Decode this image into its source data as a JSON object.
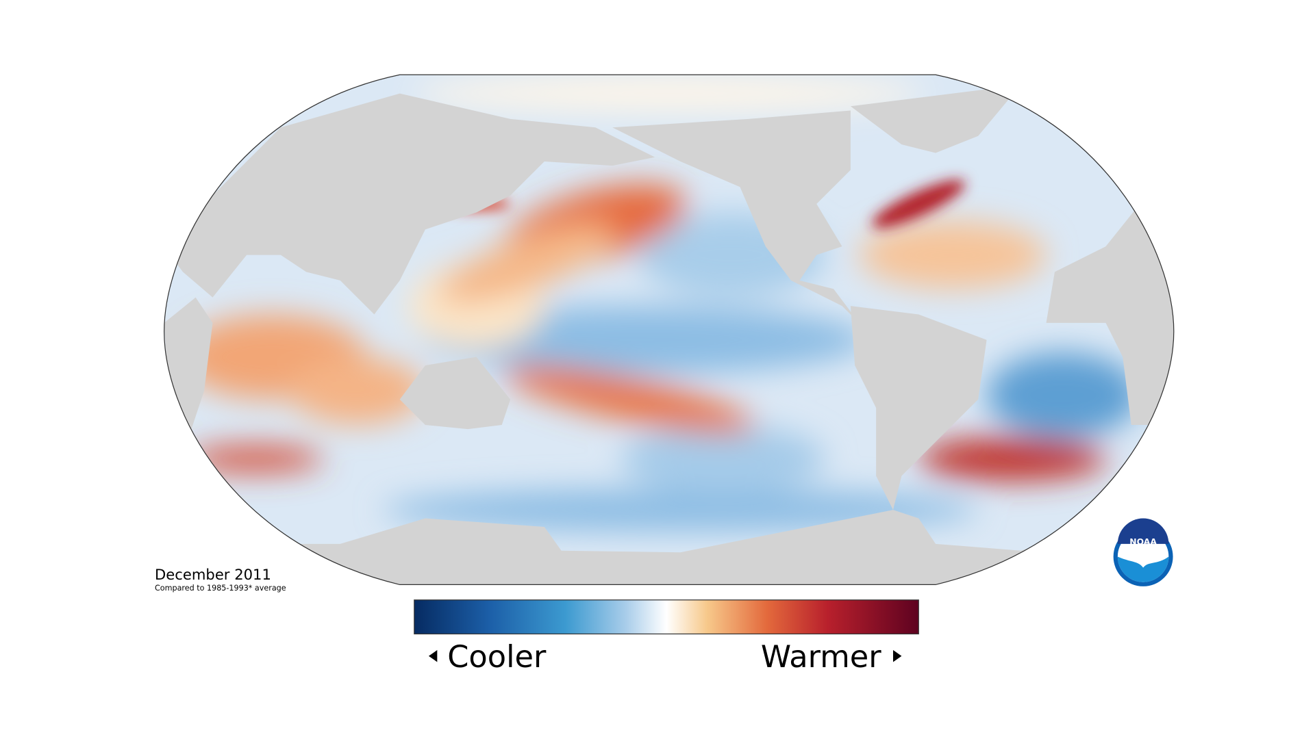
{
  "caption": {
    "title": "December 2011",
    "note": "Compared to 1985-1993* average"
  },
  "legend": {
    "low": "Cooler",
    "high": "Warmer"
  },
  "logo": "NOAA"
}
